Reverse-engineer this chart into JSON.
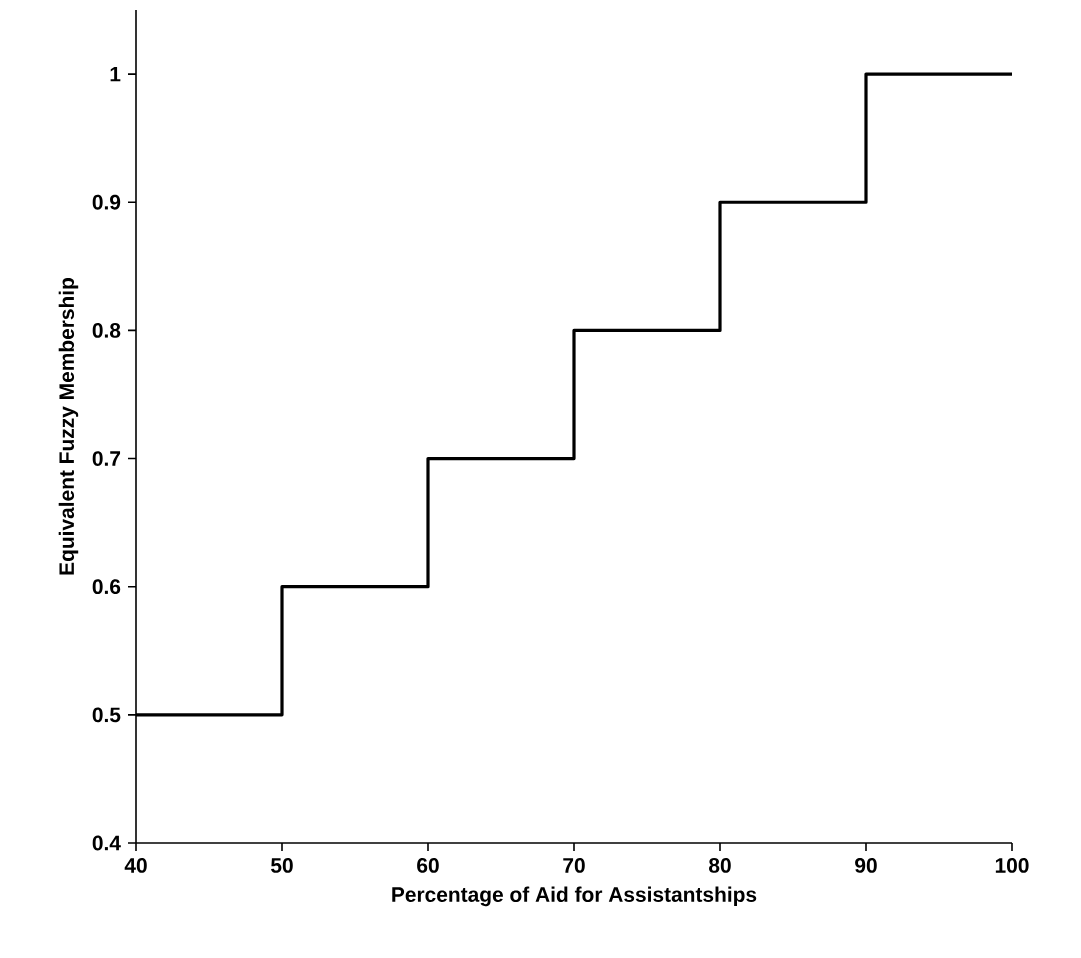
{
  "chart_data": {
    "type": "step",
    "xlabel": "Percentage of Aid for Assistantships",
    "ylabel": "Equivalent Fuzzy Membership",
    "x": [
      40,
      50,
      60,
      70,
      80,
      90,
      100
    ],
    "series": [
      {
        "color": "#000000",
        "values": [
          0.5,
          0.6,
          0.7,
          0.8,
          0.9,
          1.0,
          1.0
        ]
      }
    ],
    "xlim": [
      40,
      100
    ],
    "ylim": [
      0.4,
      1.05
    ],
    "xticks": [
      40,
      50,
      60,
      70,
      80,
      90,
      100
    ],
    "yticks": [
      0.4,
      0.5,
      0.6,
      0.7,
      0.8,
      0.9,
      1
    ]
  }
}
